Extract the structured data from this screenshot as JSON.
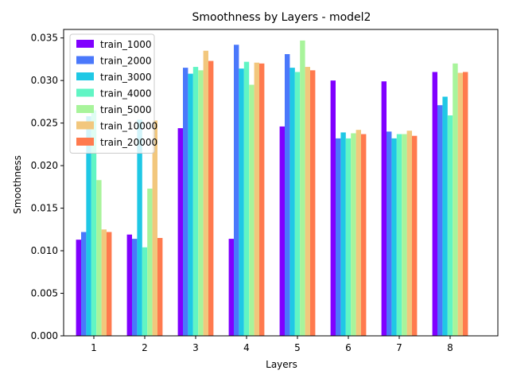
{
  "chart_data": {
    "type": "bar",
    "title": "Smoothness by Layers - model2",
    "xlabel": "Layers",
    "ylabel": "Smoothness",
    "categories": [
      "1",
      "2",
      "3",
      "4",
      "5",
      "6",
      "7",
      "8"
    ],
    "ylim": [
      0,
      0.036
    ],
    "yticks": [
      "0.000",
      "0.005",
      "0.010",
      "0.015",
      "0.020",
      "0.025",
      "0.030",
      "0.035"
    ],
    "grid": false,
    "legend_position": "top-left",
    "series": [
      {
        "name": "train_1000",
        "color": "#8000ff",
        "values": [
          0.0113,
          0.0119,
          0.0244,
          0.0114,
          0.0246,
          0.03,
          0.0299,
          0.031
        ]
      },
      {
        "name": "train_2000",
        "color": "#4a78fb",
        "values": [
          0.0122,
          0.0114,
          0.0315,
          0.0342,
          0.0331,
          0.0232,
          0.024,
          0.0271
        ]
      },
      {
        "name": "train_3000",
        "color": "#1fc8e5",
        "values": [
          0.0258,
          0.0254,
          0.0308,
          0.0314,
          0.0315,
          0.0239,
          0.0232,
          0.0281
        ]
      },
      {
        "name": "train_4000",
        "color": "#61f5c4",
        "values": [
          0.0265,
          0.0104,
          0.0316,
          0.0322,
          0.031,
          0.0232,
          0.0237,
          0.0259
        ]
      },
      {
        "name": "train_5000",
        "color": "#a8f49b",
        "values": [
          0.0183,
          0.0173,
          0.0312,
          0.0295,
          0.0347,
          0.0238,
          0.0237,
          0.032
        ]
      },
      {
        "name": "train_10000",
        "color": "#f2c77d",
        "values": [
          0.0125,
          0.0253,
          0.0335,
          0.0321,
          0.0316,
          0.0242,
          0.0241,
          0.0309
        ]
      },
      {
        "name": "train_20000",
        "color": "#ff7a4e",
        "values": [
          0.0122,
          0.0115,
          0.0323,
          0.032,
          0.0312,
          0.0237,
          0.0235,
          0.031
        ]
      }
    ]
  }
}
